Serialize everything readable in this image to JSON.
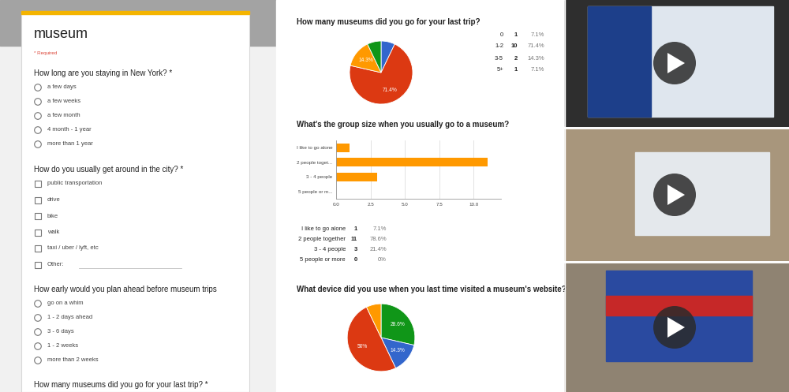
{
  "form": {
    "title": "museum",
    "note": "* Required",
    "questions": [
      {
        "text": "How long are you staying in New York? *",
        "type": "radio",
        "options": [
          "a few days",
          "a few weeks",
          "a few month",
          "4 month - 1 year",
          "more than 1 year"
        ]
      },
      {
        "text": "How do you usually get around in the city? *",
        "type": "checkbox",
        "options": [
          "public transportation",
          "drive",
          "bike",
          "walk",
          "taxi / uber / lyft, etc",
          "Other:"
        ]
      },
      {
        "text": "How early would you plan ahead before museum trips",
        "type": "radio",
        "options": [
          "go on a whim",
          "1 - 2 days ahead",
          "3 - 6 days",
          "1 - 2 weeks",
          "more than 2 weeks"
        ]
      },
      {
        "text": "How many museums did you go for your last trip? *",
        "type": "radio"
      }
    ]
  },
  "chart_data": [
    {
      "type": "pie",
      "title": "How many museums did you go for your last trip?",
      "categories": [
        "0",
        "1-2",
        "3-5",
        "5+"
      ],
      "values": [
        7.1,
        71.4,
        14.3,
        7.1
      ],
      "colors": [
        "#3366cc",
        "#dc3912",
        "#ff9900",
        "#109618"
      ],
      "slice_labels": [
        null,
        "71.4%",
        "14.3%",
        null
      ],
      "summary": [
        [
          "0",
          1,
          "7.1%"
        ],
        [
          "1-2",
          10,
          "71.4%"
        ],
        [
          "3-5",
          2,
          "14.3%"
        ],
        [
          "5+",
          1,
          "7.1%"
        ]
      ]
    },
    {
      "type": "bar",
      "orientation": "horizontal",
      "title": "What's the group size when you usually go to a museum?",
      "categories": [
        "I like to go alone",
        "2 people toget...",
        "3 - 4 people",
        "5 people or m..."
      ],
      "values": [
        1,
        11,
        3,
        0
      ],
      "color": "#ff9900",
      "grid": true,
      "xlim": [
        0,
        12
      ],
      "xticks": [
        {
          "value": 0,
          "label": "0.0"
        },
        2.5,
        {
          "value": 5,
          "label": "5.0"
        },
        7.5,
        {
          "value": 10,
          "label": "10.0"
        }
      ],
      "summary": [
        [
          "I like to go alone",
          1,
          "7.1%"
        ],
        [
          "2 people together",
          11,
          "78.6%"
        ],
        [
          "3 - 4 people",
          3,
          "21.4%"
        ],
        [
          "5 people or more",
          0,
          "0%"
        ]
      ]
    },
    {
      "type": "pie",
      "title": "What device did you use when you last time visited a museum's website?",
      "values": [
        28.6,
        14.3,
        50,
        7.1
      ],
      "colors": [
        "#109618",
        "#3366cc",
        "#dc3912",
        "#ff9900"
      ],
      "slice_labels": [
        "28.6%",
        "14.3%",
        "50%",
        null
      ]
    }
  ]
}
